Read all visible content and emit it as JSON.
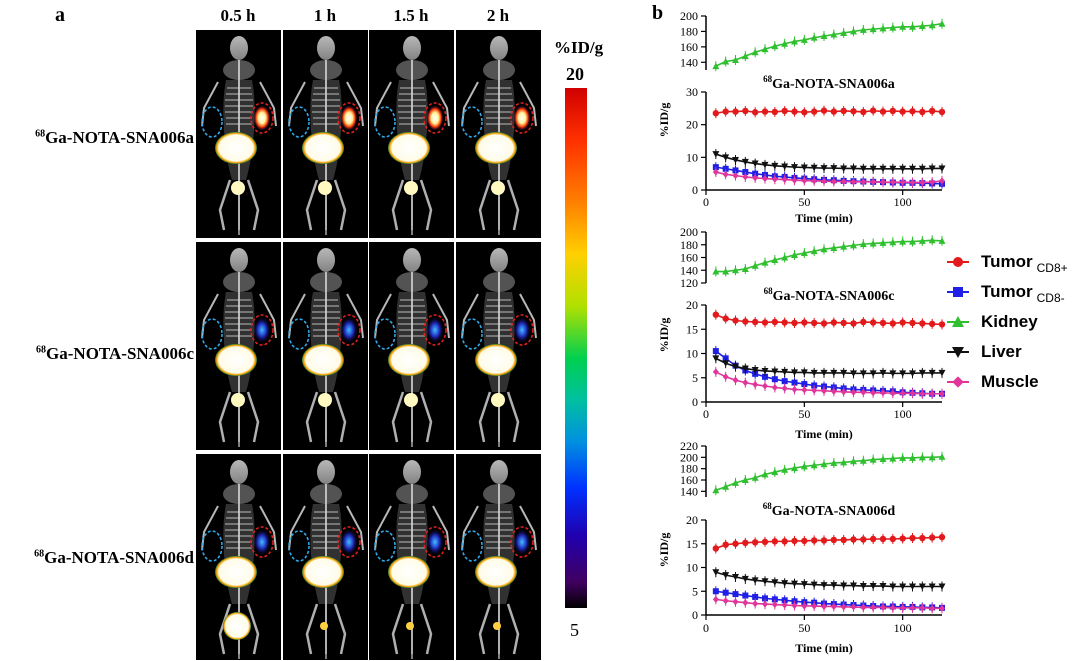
{
  "panel_a": {
    "letter": "a",
    "time_labels": [
      "0.5 h",
      "1 h",
      "1.5 h",
      "2 h"
    ],
    "row_labels": [
      {
        "sup": "68",
        "text": "Ga-NOTA-SNA006a"
      },
      {
        "sup": "68",
        "text": "Ga-NOTA-SNA006c"
      },
      {
        "sup": "68",
        "text": "Ga-NOTA-SNA006d"
      }
    ],
    "colorbar": {
      "title": "%ID/g",
      "max": "20",
      "min": "5"
    }
  },
  "panel_b": {
    "letter": "b",
    "legend": [
      {
        "name": "Tumor",
        "sub": "CD8+",
        "color": "#e31a1c",
        "marker": "circle"
      },
      {
        "name": "Tumor",
        "sub": "CD8-",
        "color": "#1f1fe6",
        "marker": "square"
      },
      {
        "name": "Kidney",
        "sub": "",
        "color": "#2fbf2f",
        "marker": "triangle-up"
      },
      {
        "name": "Liver",
        "sub": "",
        "color": "#111111",
        "marker": "triangle-down"
      },
      {
        "name": "Muscle",
        "sub": "",
        "color": "#e0359a",
        "marker": "diamond"
      }
    ]
  },
  "chart_data": [
    {
      "type": "line",
      "title": "⁶⁸Ga-NOTA-SNA006a",
      "title_sup": "68",
      "title_text": "Ga-NOTA-SNA006a",
      "xlabel": "Time (min)",
      "ylabel": "%ID/g",
      "xlim": [
        0,
        120
      ],
      "xticks": [
        0,
        50,
        100
      ],
      "upper_ylim": [
        130,
        200
      ],
      "upper_yticks": [
        140,
        160,
        180,
        200
      ],
      "lower_ylim": [
        0,
        30
      ],
      "lower_yticks": [
        0,
        10,
        20,
        30
      ],
      "x": [
        5,
        10,
        15,
        20,
        25,
        30,
        35,
        40,
        45,
        50,
        55,
        60,
        65,
        70,
        75,
        80,
        85,
        90,
        95,
        100,
        105,
        110,
        115,
        120
      ],
      "series": [
        {
          "name": "Tumor CD8+",
          "values": [
            23.5,
            24.0,
            24.0,
            24.2,
            23.8,
            24.0,
            23.9,
            24.2,
            24.0,
            23.8,
            24.0,
            24.3,
            24.0,
            24.2,
            24.1,
            23.9,
            24.3,
            24.0,
            24.2,
            24.0,
            24.1,
            23.9,
            24.2,
            23.9
          ]
        },
        {
          "name": "Tumor CD8-",
          "values": [
            7.0,
            6.5,
            6.0,
            5.5,
            5.0,
            4.6,
            4.2,
            4.0,
            3.7,
            3.5,
            3.3,
            3.1,
            3.0,
            2.8,
            2.7,
            2.6,
            2.5,
            2.4,
            2.3,
            2.2,
            2.2,
            2.1,
            2.0,
            1.9
          ]
        },
        {
          "name": "Kidney",
          "values": [
            135,
            141,
            143,
            148,
            153,
            157,
            161,
            164,
            167,
            169,
            172,
            174,
            176,
            178,
            180,
            182,
            183,
            184,
            185,
            186,
            186,
            187,
            188,
            190
          ]
        },
        {
          "name": "Liver",
          "values": [
            11.0,
            10.0,
            9.2,
            8.6,
            8.1,
            7.7,
            7.4,
            7.2,
            7.0,
            6.9,
            6.8,
            6.7,
            6.7,
            6.6,
            6.6,
            6.5,
            6.5,
            6.5,
            6.5,
            6.5,
            6.5,
            6.5,
            6.6,
            6.6
          ]
        },
        {
          "name": "Muscle",
          "values": [
            5.5,
            4.8,
            4.4,
            4.0,
            3.7,
            3.5,
            3.3,
            3.2,
            3.0,
            2.9,
            2.8,
            2.7,
            2.6,
            2.6,
            2.5,
            2.5,
            2.5,
            2.4,
            2.4,
            2.4,
            2.3,
            2.3,
            2.4,
            2.8
          ]
        }
      ]
    },
    {
      "type": "line",
      "title": "⁶⁸Ga-NOTA-SNA006c",
      "title_sup": "68",
      "title_text": "Ga-NOTA-SNA006c",
      "xlabel": "Time (min)",
      "ylabel": "%ID/g",
      "xlim": [
        0,
        120
      ],
      "xticks": [
        0,
        50,
        100
      ],
      "upper_ylim": [
        120,
        200
      ],
      "upper_yticks": [
        120,
        140,
        160,
        180,
        200
      ],
      "lower_ylim": [
        0,
        20
      ],
      "lower_yticks": [
        0,
        5,
        10,
        15,
        20
      ],
      "x": [
        5,
        10,
        15,
        20,
        25,
        30,
        35,
        40,
        45,
        50,
        55,
        60,
        65,
        70,
        75,
        80,
        85,
        90,
        95,
        100,
        105,
        110,
        115,
        120
      ],
      "series": [
        {
          "name": "Tumor CD8+",
          "values": [
            18.0,
            17.2,
            16.8,
            16.6,
            16.5,
            16.4,
            16.5,
            16.4,
            16.3,
            16.4,
            16.3,
            16.2,
            16.4,
            16.3,
            16.2,
            16.5,
            16.4,
            16.3,
            16.2,
            16.4,
            16.3,
            16.2,
            16.1,
            16.0
          ]
        },
        {
          "name": "Tumor CD8-",
          "values": [
            10.5,
            9.0,
            7.5,
            6.5,
            5.8,
            5.2,
            4.7,
            4.3,
            4.0,
            3.7,
            3.4,
            3.2,
            3.0,
            2.8,
            2.6,
            2.5,
            2.4,
            2.3,
            2.2,
            2.0,
            1.9,
            1.8,
            1.7,
            1.7
          ]
        },
        {
          "name": "Kidney",
          "values": [
            138,
            138,
            140,
            142,
            147,
            152,
            156,
            160,
            164,
            167,
            170,
            173,
            175,
            177,
            179,
            181,
            182,
            183,
            184,
            185,
            185,
            186,
            187,
            186
          ]
        },
        {
          "name": "Liver",
          "values": [
            9.0,
            8.0,
            7.3,
            6.9,
            6.6,
            6.4,
            6.3,
            6.2,
            6.1,
            6.1,
            6.0,
            6.0,
            6.0,
            6.0,
            5.9,
            5.9,
            5.9,
            6.0,
            5.9,
            5.9,
            5.9,
            6.0,
            6.0,
            6.0
          ]
        },
        {
          "name": "Muscle",
          "values": [
            6.2,
            5.2,
            4.5,
            4.0,
            3.6,
            3.3,
            3.0,
            2.8,
            2.6,
            2.5,
            2.4,
            2.3,
            2.2,
            2.1,
            2.0,
            2.0,
            1.9,
            1.9,
            1.8,
            1.8,
            1.8,
            1.7,
            1.7,
            1.7
          ]
        }
      ]
    },
    {
      "type": "line",
      "title": "⁶⁸Ga-NOTA-SNA006d",
      "title_sup": "68",
      "title_text": "Ga-NOTA-SNA006d",
      "xlabel": "Time (min)",
      "ylabel": "%ID/g",
      "xlim": [
        0,
        120
      ],
      "xticks": [
        0,
        50,
        100
      ],
      "upper_ylim": [
        130,
        220
      ],
      "upper_yticks": [
        140,
        160,
        180,
        200,
        220
      ],
      "lower_ylim": [
        0,
        20
      ],
      "lower_yticks": [
        0,
        5,
        10,
        15,
        20
      ],
      "x": [
        5,
        10,
        15,
        20,
        25,
        30,
        35,
        40,
        45,
        50,
        55,
        60,
        65,
        70,
        75,
        80,
        85,
        90,
        95,
        100,
        105,
        110,
        115,
        120
      ],
      "series": [
        {
          "name": "Tumor CD8+",
          "values": [
            14.0,
            14.8,
            15.0,
            15.2,
            15.3,
            15.4,
            15.5,
            15.5,
            15.6,
            15.6,
            15.7,
            15.7,
            15.8,
            15.8,
            15.9,
            15.9,
            16.0,
            16.0,
            16.0,
            16.1,
            16.2,
            16.2,
            16.3,
            16.4
          ]
        },
        {
          "name": "Tumor CD8-",
          "values": [
            5.0,
            4.7,
            4.4,
            4.1,
            3.8,
            3.5,
            3.3,
            3.1,
            2.9,
            2.7,
            2.6,
            2.4,
            2.3,
            2.2,
            2.1,
            2.0,
            1.9,
            1.8,
            1.8,
            1.7,
            1.7,
            1.6,
            1.6,
            1.5
          ]
        },
        {
          "name": "Kidney",
          "values": [
            142,
            148,
            155,
            160,
            164,
            170,
            174,
            178,
            181,
            184,
            186,
            188,
            190,
            191,
            193,
            194,
            196,
            197,
            198,
            199,
            199,
            200,
            200,
            201
          ]
        },
        {
          "name": "Liver",
          "values": [
            9.0,
            8.4,
            8.0,
            7.6,
            7.3,
            7.1,
            6.9,
            6.7,
            6.6,
            6.5,
            6.4,
            6.3,
            6.3,
            6.2,
            6.2,
            6.1,
            6.1,
            6.1,
            6.0,
            6.0,
            6.0,
            6.0,
            6.0,
            6.0
          ]
        },
        {
          "name": "Muscle",
          "values": [
            3.3,
            3.0,
            2.8,
            2.6,
            2.4,
            2.3,
            2.2,
            2.1,
            2.0,
            1.9,
            1.9,
            1.8,
            1.8,
            1.7,
            1.7,
            1.6,
            1.6,
            1.6,
            1.5,
            1.5,
            1.5,
            1.5,
            1.4,
            1.4
          ]
        }
      ]
    }
  ]
}
